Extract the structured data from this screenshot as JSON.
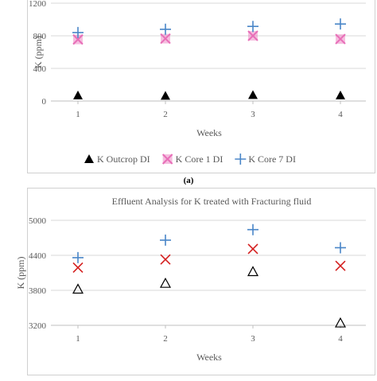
{
  "caption": "(a)",
  "chart_data": [
    {
      "type": "scatter",
      "title": "",
      "xlabel": "Weeks",
      "ylabel": "K (ppm)",
      "x": [
        1,
        2,
        3,
        4
      ],
      "xticks": [
        "1",
        "2",
        "3",
        "4"
      ],
      "ylim": [
        0,
        1200
      ],
      "yticks": [
        "0",
        "400",
        "800",
        "1200"
      ],
      "grid": "horizontal",
      "legend_position": "bottom",
      "series": [
        {
          "name": "K Outcrop DI",
          "marker": "triangle-filled",
          "color": "#000000",
          "values": [
            70,
            65,
            75,
            70
          ]
        },
        {
          "name": "K Core 1 DI",
          "marker": "square-x",
          "color": "#e86fb8",
          "values": [
            755,
            765,
            800,
            760
          ]
        },
        {
          "name": "K Core 7 DI",
          "marker": "plus",
          "color": "#4a86c8",
          "values": [
            840,
            880,
            915,
            945
          ]
        }
      ]
    },
    {
      "type": "scatter",
      "title": "Effluent Analysis for K treated with Fracturing fluid",
      "xlabel": "Weeks",
      "ylabel": "K (ppm)",
      "x": [
        1,
        2,
        3,
        4
      ],
      "xticks": [
        "1",
        "2",
        "3",
        "4"
      ],
      "ylim": [
        3200,
        5000
      ],
      "yticks": [
        "3200",
        "3800",
        "4400",
        "5000"
      ],
      "grid": "horizontal",
      "series": [
        {
          "marker": "triangle-open",
          "color": "#000000",
          "values": [
            3820,
            3920,
            4120,
            3240
          ]
        },
        {
          "marker": "x",
          "color": "#d42020",
          "values": [
            4190,
            4330,
            4510,
            4220
          ]
        },
        {
          "marker": "plus",
          "color": "#4a86c8",
          "values": [
            4360,
            4660,
            4840,
            4530
          ]
        }
      ]
    }
  ]
}
